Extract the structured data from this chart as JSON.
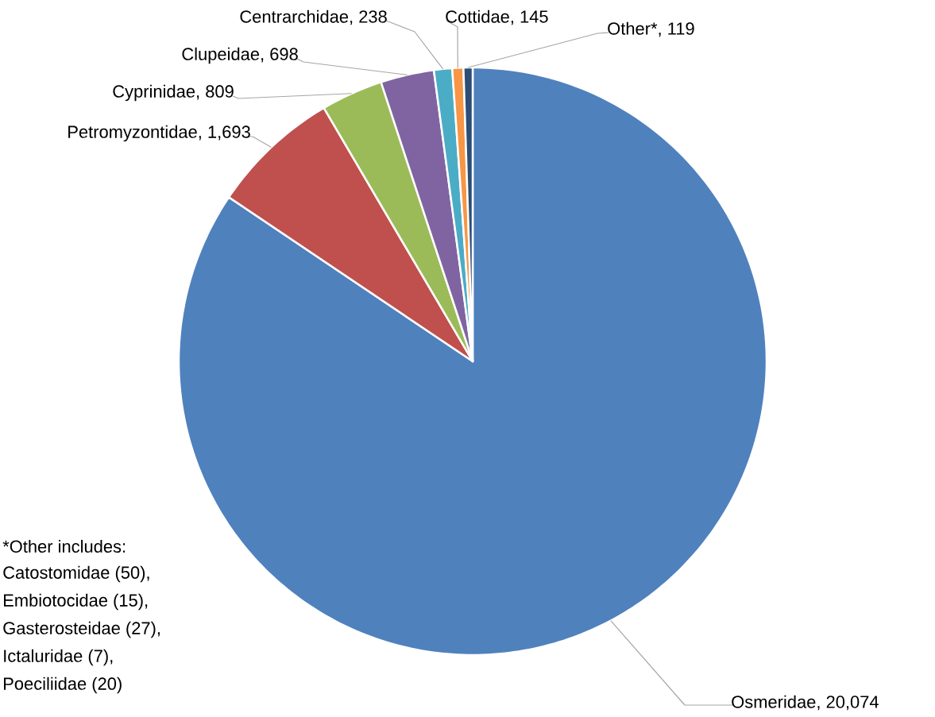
{
  "chart_data": {
    "type": "pie",
    "categories": [
      "Osmeridae",
      "Petromyzontidae",
      "Cyprinidae",
      "Clupeidae",
      "Centrarchidae",
      "Cottidae",
      "Other*"
    ],
    "values": [
      20074,
      1693,
      809,
      698,
      238,
      145,
      119
    ],
    "value_labels": [
      ", 20,074",
      ", 1,693",
      ", 809",
      ", 698",
      ", 238",
      ", 145",
      ", 119"
    ],
    "colors": [
      "#4f81bd",
      "#c0504d",
      "#9bbb59",
      "#8064a2",
      "#4bacc6",
      "#f79646",
      "#2c4d75"
    ],
    "annotations": [
      "*Other includes:",
      "Catostomidae (50),",
      "Embiotocidae (15),",
      "Gasterosteidae (27),",
      "Ictaluridae (7),",
      "Poeciliidae (20)"
    ]
  }
}
